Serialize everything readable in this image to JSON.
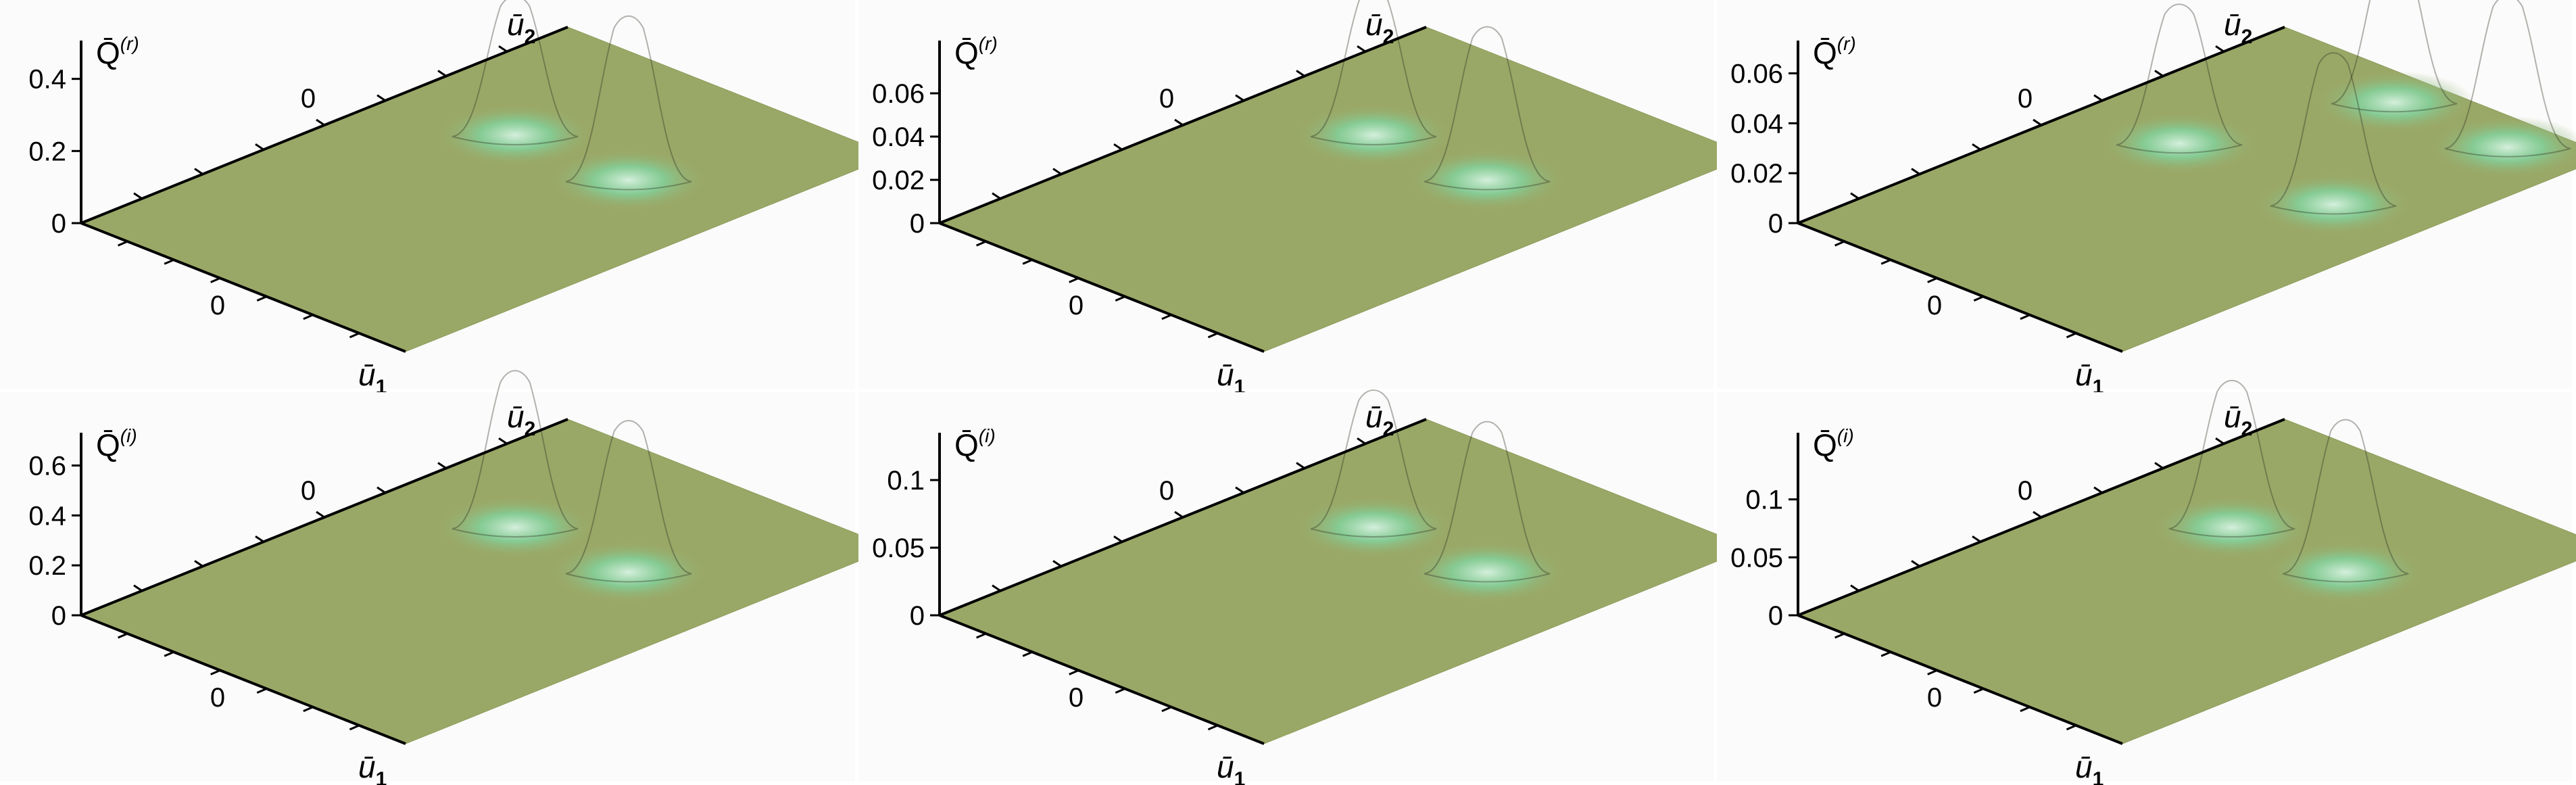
{
  "chart_data": [
    {
      "type": "surface3d",
      "quantity": "r",
      "zlabel": "Q̄",
      "zlabel_superscript": "(r)",
      "xlabel": "ū",
      "xlabel_subscript": "1",
      "ylabel": "ū",
      "ylabel_subscript": "2",
      "z_ticks": [
        "0",
        "0.2",
        "0.4"
      ],
      "z_max": 0.45,
      "u1_tick": "0",
      "u2_tick": "0",
      "peaks": [
        {
          "u1": -0.35,
          "u2": 0.35,
          "height": 0.38
        },
        {
          "u1": 0.35,
          "u2": 0.35,
          "height": 0.45
        }
      ]
    },
    {
      "type": "surface3d",
      "quantity": "r",
      "zlabel": "Q̄",
      "zlabel_superscript": "(r)",
      "xlabel": "ū",
      "xlabel_subscript": "1",
      "ylabel": "ū",
      "ylabel_subscript": "2",
      "z_ticks": [
        "0",
        "0.02",
        "0.04",
        "0.06"
      ],
      "z_max": 0.075,
      "u1_tick": "0",
      "u2_tick": "0",
      "peaks": [
        {
          "u1": -0.35,
          "u2": 0.35,
          "height": 0.066
        },
        {
          "u1": 0.35,
          "u2": 0.35,
          "height": 0.07
        }
      ]
    },
    {
      "type": "surface3d",
      "quantity": "r",
      "zlabel": "Q̄",
      "zlabel_superscript": "(r)",
      "xlabel": "ū",
      "xlabel_subscript": "1",
      "ylabel": "ū",
      "ylabel_subscript": "2",
      "z_ticks": [
        "0",
        "0.02",
        "0.04",
        "0.06"
      ],
      "z_max": 0.065,
      "u1_tick": "0",
      "u2_tick": "0",
      "peaks": [
        {
          "u1": -0.1,
          "u2": 0.85,
          "height": 0.06
        },
        {
          "u1": 0.6,
          "u2": 0.85,
          "height": 0.06
        },
        {
          "u1": -0.45,
          "u2": 0.2,
          "height": 0.055
        },
        {
          "u1": 0.5,
          "u2": 0.2,
          "height": 0.06
        }
      ]
    },
    {
      "type": "surface3d",
      "quantity": "i",
      "zlabel": "Q̄",
      "zlabel_superscript": "(i)",
      "xlabel": "ū",
      "xlabel_subscript": "1",
      "ylabel": "ū",
      "ylabel_subscript": "2",
      "z_ticks": [
        "0",
        "0.2",
        "0.4",
        "0.6"
      ],
      "z_max": 0.65,
      "u1_tick": "0",
      "u2_tick": "0",
      "peaks": [
        {
          "u1": -0.35,
          "u2": 0.35,
          "height": 0.62
        },
        {
          "u1": 0.35,
          "u2": 0.35,
          "height": 0.6
        }
      ]
    },
    {
      "type": "surface3d",
      "quantity": "i",
      "zlabel": "Q̄",
      "zlabel_superscript": "(i)",
      "xlabel": "ū",
      "xlabel_subscript": "1",
      "ylabel": "ū",
      "ylabel_subscript": "2",
      "z_ticks": [
        "0",
        "0.05",
        "0.1"
      ],
      "z_max": 0.12,
      "u1_tick": "0",
      "u2_tick": "0",
      "peaks": [
        {
          "u1": -0.35,
          "u2": 0.35,
          "height": 0.1
        },
        {
          "u1": 0.35,
          "u2": 0.35,
          "height": 0.11
        }
      ]
    },
    {
      "type": "surface3d",
      "quantity": "i",
      "zlabel": "Q̄",
      "zlabel_superscript": "(i)",
      "xlabel": "ū",
      "xlabel_subscript": "1",
      "ylabel": "ū",
      "ylabel_subscript": "2",
      "z_ticks": [
        "0",
        "0.05",
        "0.1"
      ],
      "z_max": 0.14,
      "u1_tick": "0",
      "u2_tick": "0",
      "peaks": [
        {
          "u1": -0.35,
          "u2": 0.35,
          "height": 0.125
        },
        {
          "u1": 0.35,
          "u2": 0.35,
          "height": 0.13
        }
      ]
    }
  ],
  "colors": {
    "plane": "#9aa867",
    "peak_top": "#1a78d4",
    "peak_high": "#bfe6f5",
    "peak_mid": "#fdf6e6",
    "peak_band": "#e9a70c",
    "peak_low": "#f7f3da",
    "peak_base": "#69c98a"
  }
}
